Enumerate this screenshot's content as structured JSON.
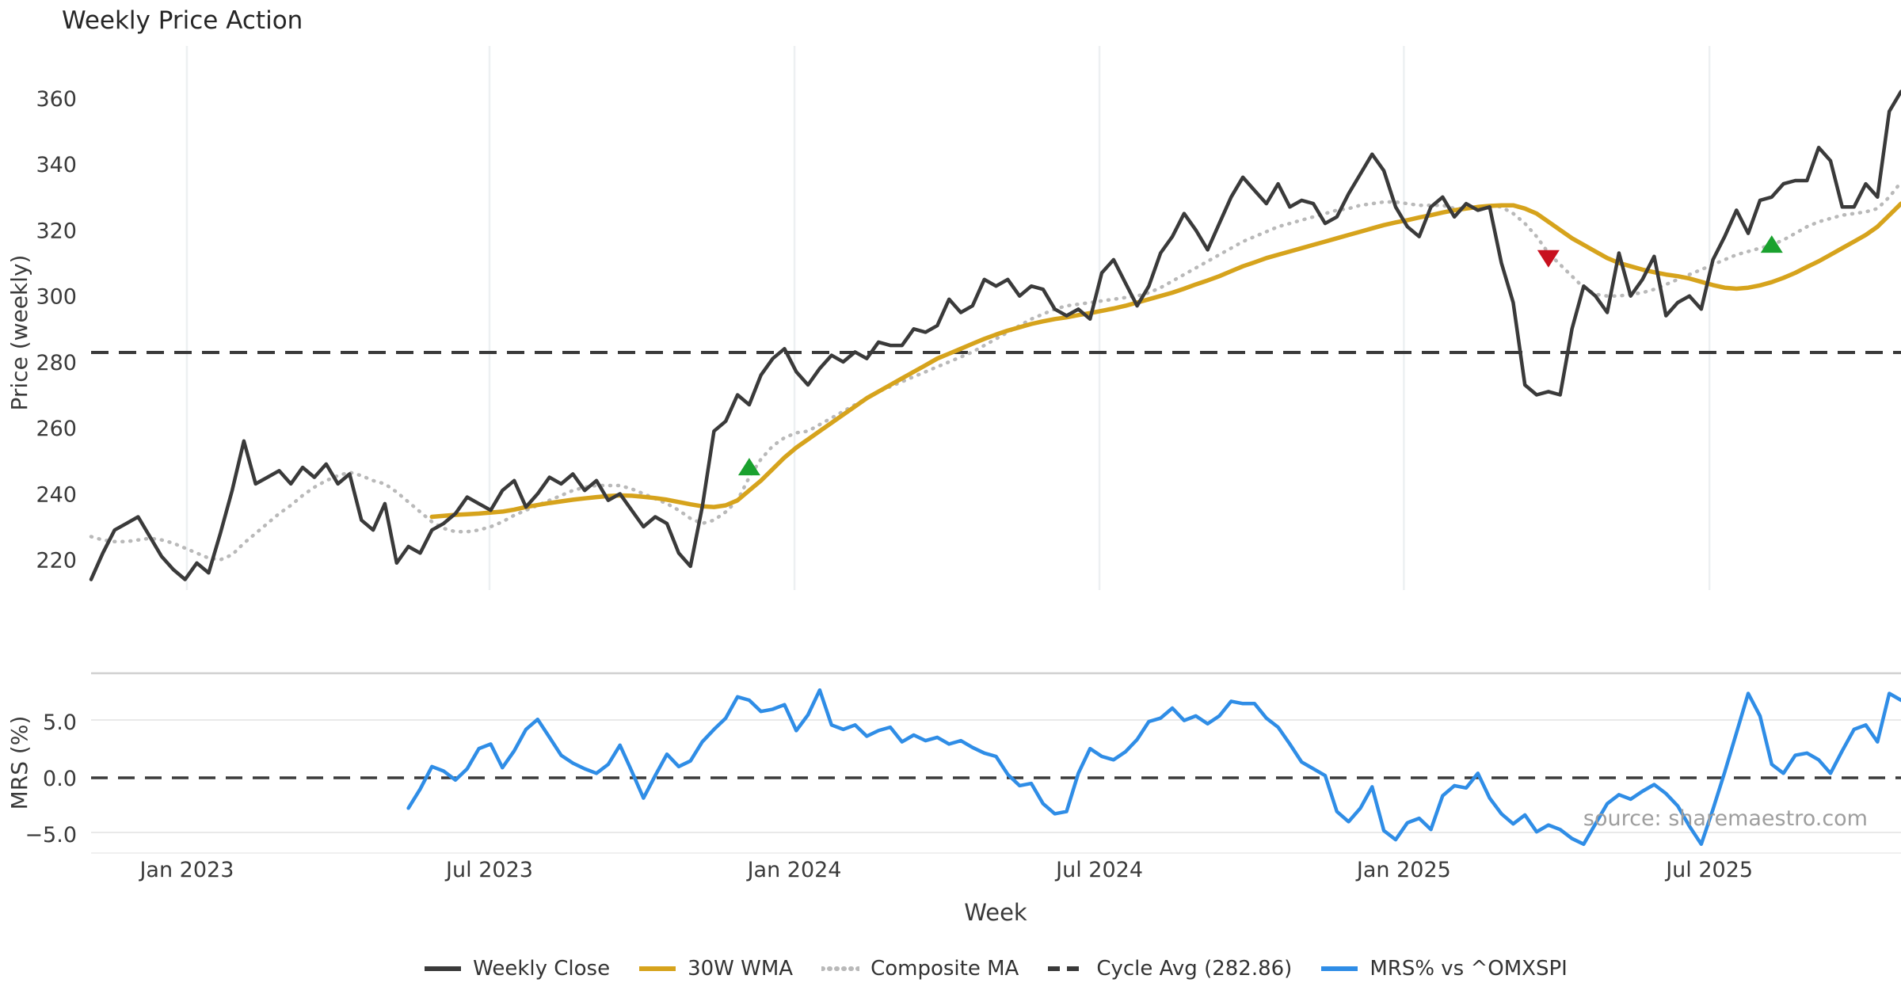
{
  "title": "Weekly Price Action",
  "source_note": "source: sharemaestro.com",
  "colors": {
    "weekly_close": "#3a3a3a",
    "wma_30w": "#d6a31c",
    "composite_ma": "#b9b9b9",
    "cycle_avg": "#3a3a3a",
    "mrs": "#2f8de6",
    "marker_up": "#1aa12e",
    "marker_down": "#c8101e",
    "gridline": "#edf0f2",
    "mrs_spine": "#d0d0d0",
    "mrs_gridline": "#e9e9e9",
    "tick_text": "#3a3a3a",
    "title_text": "#262626",
    "source_text": "#9e9e9e"
  },
  "legend": [
    {
      "label": "Weekly Close",
      "style": "solid",
      "color": "#3a3a3a"
    },
    {
      "label": "30W WMA",
      "style": "solid",
      "color": "#d6a31c"
    },
    {
      "label": "Composite MA",
      "style": "dotted",
      "color": "#b9b9b9"
    },
    {
      "label": "Cycle Avg (282.86)",
      "style": "dashed",
      "color": "#3a3a3a"
    },
    {
      "label": "MRS% vs ^OMXSPI",
      "style": "solid",
      "color": "#2f8de6"
    }
  ],
  "chart_data": [
    {
      "type": "line",
      "panel": "price",
      "title": "Weekly Price Action",
      "xlabel": "Week",
      "ylabel": "Price (weekly)",
      "ylim": [
        210.8,
        375.8
      ],
      "grid": "vertical-only",
      "legend_position": "bottom-center",
      "y_ticks": [
        220,
        240,
        260,
        280,
        300,
        320,
        340,
        360
      ],
      "x_ticks": [
        {
          "label": "Jan 2023",
          "week": 8.15
        },
        {
          "label": "Jul 2023",
          "week": 33.9
        },
        {
          "label": "Jan 2024",
          "week": 59.85
        },
        {
          "label": "Jul 2024",
          "week": 85.8
        },
        {
          "label": "Jan 2025",
          "week": 111.7
        },
        {
          "label": "Jul 2025",
          "week": 137.7
        }
      ],
      "cycle_avg": 282.86,
      "series": [
        {
          "name": "Weekly Close",
          "start_week": 0,
          "values": [
            214,
            222,
            229,
            231,
            233,
            227,
            221,
            217,
            214,
            219,
            216,
            228,
            241,
            256,
            243,
            245,
            247,
            243,
            248,
            245,
            249,
            243,
            246,
            232,
            229,
            237,
            219,
            224,
            222,
            229,
            231,
            234,
            239,
            237,
            235,
            241,
            244,
            236,
            240,
            245,
            243,
            246,
            241,
            244,
            238,
            240,
            235,
            230,
            233,
            231,
            222,
            218,
            236,
            259,
            262,
            270,
            267,
            276,
            281,
            284,
            277,
            273,
            278,
            282,
            280,
            283,
            281,
            286,
            285,
            285,
            290,
            289,
            291,
            299,
            295,
            297,
            305,
            303,
            305,
            300,
            303,
            302,
            296,
            294,
            296,
            293,
            307,
            311,
            304,
            297,
            303,
            313,
            318,
            325,
            320,
            314,
            322,
            330,
            336,
            332,
            328,
            334,
            327,
            329,
            328,
            322,
            324,
            331,
            337,
            343,
            338,
            327,
            321,
            318,
            327,
            330,
            324,
            328,
            326,
            327,
            310,
            298,
            273,
            270,
            271,
            270,
            290,
            303,
            300,
            295,
            313,
            300,
            305,
            312,
            294,
            298,
            300,
            296,
            311,
            318,
            326,
            319,
            329,
            330,
            334,
            335,
            335,
            345,
            341,
            327,
            327,
            334,
            330,
            356,
            362
          ]
        },
        {
          "name": "30W WMA",
          "start_week": 29,
          "values": [
            233,
            233.3,
            233.6,
            233.8,
            234,
            234.3,
            234.6,
            235.2,
            236,
            236.6,
            237.2,
            237.7,
            238.2,
            238.6,
            239,
            239.3,
            239.5,
            239.4,
            239.1,
            238.7,
            238.2,
            237.5,
            236.8,
            236.2,
            236,
            236.5,
            238,
            241,
            244,
            247.5,
            251,
            254,
            256.5,
            259,
            261.5,
            264,
            266.5,
            269,
            271,
            273,
            275,
            277,
            279,
            281,
            282.5,
            284,
            285.5,
            287,
            288.3,
            289.5,
            290.5,
            291.5,
            292.3,
            293,
            293.5,
            294.2,
            294.8,
            295.5,
            296.2,
            297,
            298,
            299,
            300,
            301,
            302.2,
            303.5,
            304.7,
            306,
            307.5,
            309,
            310.2,
            311.5,
            312.5,
            313.5,
            314.5,
            315.5,
            316.5,
            317.5,
            318.5,
            319.5,
            320.5,
            321.5,
            322.3,
            323,
            323.8,
            324.5,
            325.3,
            326,
            326.5,
            327,
            327.3,
            327.5,
            327.5,
            326.5,
            325,
            322.5,
            320,
            317.5,
            315.5,
            313.5,
            311.5,
            310,
            309,
            308,
            307.2,
            306.5,
            306,
            305.3,
            304.3,
            303.3,
            302.5,
            302.2,
            302.5,
            303.2,
            304.2,
            305.5,
            307,
            308.8,
            310.5,
            312.5,
            314.5,
            316.5,
            318.5,
            321,
            324.5,
            328
          ]
        },
        {
          "name": "Composite MA",
          "start_week": 0,
          "values": [
            227,
            226,
            225.5,
            225.5,
            226,
            226.5,
            226,
            225,
            223.5,
            222,
            220.5,
            220,
            221.5,
            225,
            228,
            231,
            234,
            236.5,
            239.5,
            242,
            244,
            245.5,
            246.5,
            245.5,
            244,
            243,
            240.5,
            237.5,
            234.5,
            231.5,
            229.5,
            228.5,
            228.5,
            229,
            230,
            231.5,
            233.5,
            235,
            236.5,
            238,
            239.5,
            241,
            242,
            242.5,
            242.5,
            242.5,
            241.5,
            240,
            238.5,
            237,
            235,
            232.5,
            231,
            232,
            234.5,
            238,
            245,
            250.5,
            254.5,
            257,
            258.5,
            259,
            261,
            263,
            265,
            267,
            269,
            271,
            272.5,
            274,
            275.5,
            277,
            278.5,
            280,
            281.5,
            283,
            285,
            287,
            289,
            291,
            293,
            294.5,
            296,
            297,
            297.5,
            298,
            298.5,
            299,
            299.5,
            300,
            301,
            302.5,
            304.5,
            306.5,
            308.5,
            310.5,
            312.5,
            314.5,
            316.5,
            318,
            319.5,
            321,
            322,
            323,
            324,
            325,
            326,
            326.5,
            327.5,
            328,
            328.5,
            328.5,
            328,
            327.5,
            327.5,
            327.5,
            326.5,
            326.5,
            327,
            327.5,
            327,
            325,
            322,
            318,
            313,
            309.5,
            306,
            302.5,
            300.5,
            300,
            300,
            300.5,
            301,
            302,
            303.5,
            305,
            306.5,
            308,
            309.5,
            311,
            312.5,
            313.5,
            314.5,
            315.5,
            317,
            319,
            321,
            322.5,
            323.5,
            324.5,
            325,
            325.5,
            326.5,
            330,
            334.5
          ]
        }
      ],
      "markers": [
        {
          "shape": "triangle-up",
          "color": "#1aa12e",
          "week": 56,
          "price": 248
        },
        {
          "shape": "triangle-down",
          "color": "#c8101e",
          "week": 124,
          "price": 311.5
        },
        {
          "shape": "triangle-up",
          "color": "#1aa12e",
          "week": 143,
          "price": 315.5
        }
      ]
    },
    {
      "type": "line",
      "panel": "mrs",
      "ylabel": "MRS (%)",
      "ylim": [
        -6.5,
        9.3
      ],
      "zero_line": 0.0,
      "y_ticks": [
        {
          "label": "5.0",
          "value": 5
        },
        {
          "label": "0.0",
          "value": 0
        },
        {
          "label": "−5.0",
          "value": -5
        }
      ],
      "series": [
        {
          "name": "MRS% vs ^OMXSPI",
          "start_week": 27,
          "values": [
            -2.7,
            -1.0,
            1.0,
            0.6,
            -0.2,
            0.8,
            2.6,
            3.0,
            0.9,
            2.4,
            4.3,
            5.2,
            3.6,
            2.0,
            1.3,
            0.8,
            0.4,
            1.2,
            2.9,
            0.6,
            -1.8,
            0.2,
            2.1,
            1.0,
            1.5,
            3.2,
            4.3,
            5.3,
            7.2,
            6.9,
            5.9,
            6.1,
            6.5,
            4.2,
            5.6,
            7.8,
            4.7,
            4.3,
            4.7,
            3.7,
            4.2,
            4.5,
            3.2,
            3.8,
            3.3,
            3.6,
            3.0,
            3.3,
            2.7,
            2.2,
            1.9,
            0.3,
            -0.7,
            -0.5,
            -2.3,
            -3.2,
            -3.0,
            0.4,
            2.6,
            1.9,
            1.6,
            2.3,
            3.4,
            5.0,
            5.3,
            6.2,
            5.1,
            5.5,
            4.8,
            5.5,
            6.8,
            6.6,
            6.6,
            5.3,
            4.5,
            3.0,
            1.4,
            0.8,
            0.2,
            -3.0,
            -3.9,
            -2.7,
            -0.8,
            -4.7,
            -5.5,
            -4.0,
            -3.6,
            -4.6,
            -1.6,
            -0.7,
            -0.9,
            0.4,
            -1.8,
            -3.2,
            -4.1,
            -3.3,
            -4.8,
            -4.2,
            -4.6,
            -5.4,
            -5.9,
            -4.1,
            -2.3,
            -1.5,
            -1.9,
            -1.2,
            -0.6,
            -1.4,
            -2.5,
            -4.3,
            -5.9,
            -2.8,
            0.5,
            4.0,
            7.5,
            5.5,
            1.2,
            0.4,
            2.0,
            2.2,
            1.6,
            0.4,
            2.4,
            4.3,
            4.7,
            3.2,
            7.5,
            6.9
          ]
        }
      ]
    }
  ],
  "labels": {
    "xlabel": "Week",
    "price_ylabel": "Price (weekly)",
    "mrs_ylabel": "MRS (%)"
  }
}
